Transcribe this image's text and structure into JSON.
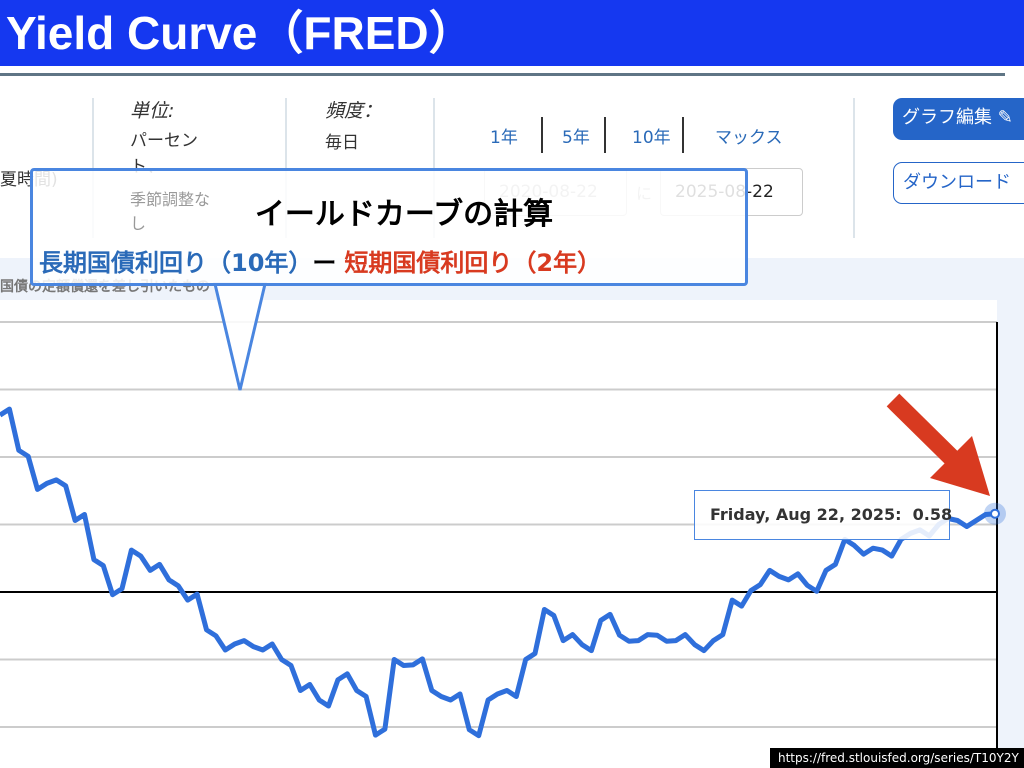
{
  "slide_title": "Yield Curve（FRED）",
  "header": {
    "time_note": "夏時間)",
    "units_label": "単位:",
    "units_value": "パーセント、",
    "units_note": "季節調整なし",
    "frequency_label": "頻度：",
    "frequency_value": "毎日",
    "ranges": [
      "1年",
      "5年",
      "10年",
      "マックス"
    ],
    "date_from": "2020-08-22",
    "date_to_word": "に",
    "date_to": "2025-08-22",
    "edit_button": "グラフ編集",
    "download_button": "ダウンロード"
  },
  "chart_caption": "国債の定額償還を差し引いたもの",
  "callout": {
    "title": "イールドカーブの計算",
    "long_term": "長期国債利回り（10年）",
    "minus": "ー",
    "short_term": "短期国債利回り（2年）"
  },
  "tooltip": {
    "date": "Friday, Aug 22, 2025:",
    "value": "0.58"
  },
  "source_url": "https://fred.stlouisfed.org/series/T10Y2Y",
  "colors": {
    "title_bar": "#1538f0",
    "series": "#2f6fdb",
    "callout_border": "#4a86e0",
    "long_term": "#2a6ab8",
    "short_term": "#d83a20",
    "arrow": "#d83a20"
  },
  "chart_data": {
    "type": "line",
    "grid": true,
    "ylim": [
      -1.2,
      2.1
    ],
    "gridlines": [
      2.0,
      1.5,
      1.0,
      0.5,
      0,
      -0.5,
      -1.0
    ],
    "last_value": 0.58,
    "values": [
      1.31,
      1.05,
      0.76,
      0.83,
      0.53,
      0.24,
      -0.02,
      0.31,
      0.16,
      0.09,
      -0.06,
      -0.28,
      -0.43,
      -0.36,
      -0.43,
      -0.5,
      -0.73,
      -0.8,
      -0.65,
      -0.73,
      -1.06,
      -0.5,
      -0.54,
      -0.73,
      -0.8,
      -1.02,
      -0.8,
      -0.73,
      -0.5,
      -0.13,
      -0.36,
      -0.39,
      -0.21,
      -0.32,
      -0.36,
      -0.32,
      -0.36,
      -0.39,
      -0.36,
      -0.06,
      0.01,
      0.16,
      0.09,
      0.05,
      0.16,
      0.39,
      0.28,
      0.31,
      0.39,
      0.46,
      0.5,
      0.53,
      0.53,
      0.58
    ]
  }
}
